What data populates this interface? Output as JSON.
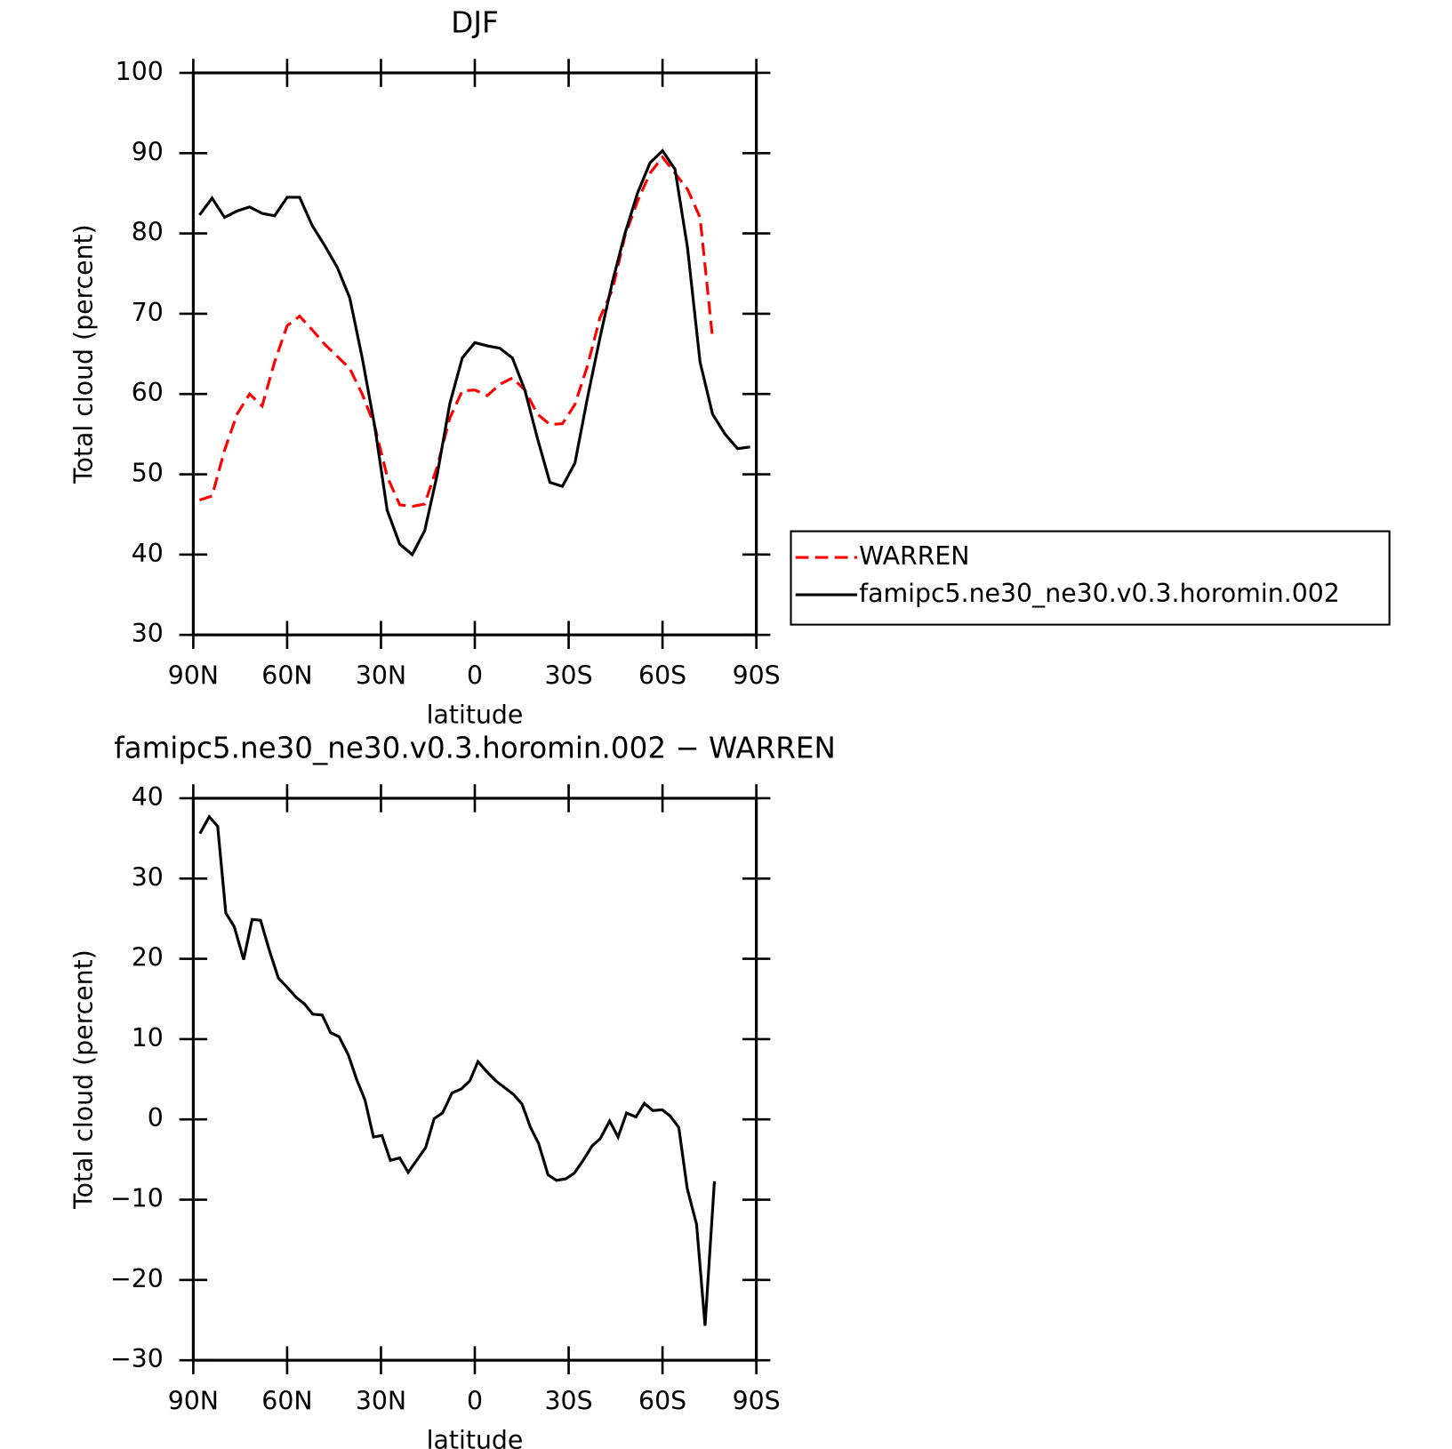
{
  "chart_data": [
    {
      "type": "line",
      "title": "DJF",
      "xlabel": "latitude",
      "ylabel": "Total cloud (percent)",
      "x": [
        88,
        84,
        80,
        76,
        72,
        68,
        64,
        60,
        56,
        52,
        48,
        44,
        40,
        36,
        32,
        28,
        24,
        20,
        16,
        12,
        8,
        4,
        0,
        -4,
        -8,
        -12,
        -16,
        -20,
        -24,
        -28,
        -32,
        -36,
        -40,
        -44,
        -48,
        -52,
        -56,
        -60,
        -64,
        -68,
        -72,
        -76,
        -80,
        -84,
        -88
      ],
      "xlim": [
        90,
        -90
      ],
      "xticks": [
        {
          "value": 90,
          "label": "90N"
        },
        {
          "value": 60,
          "label": "60N"
        },
        {
          "value": 30,
          "label": "30N"
        },
        0,
        {
          "value": -30,
          "label": "30S"
        },
        {
          "value": -60,
          "label": "60S"
        },
        {
          "value": -90,
          "label": "90S"
        }
      ],
      "ylim": [
        30,
        100
      ],
      "yticks": [
        30,
        40,
        50,
        60,
        70,
        80,
        90,
        100
      ],
      "legend": "right",
      "series": [
        {
          "name": "WARREN",
          "color": "#ff0000",
          "linestyle": "dashed",
          "values": [
            46.8,
            47.3,
            53,
            57.5,
            60,
            58.5,
            64,
            68.5,
            69.7,
            68,
            66.2,
            64.7,
            63.2,
            60,
            56,
            49.7,
            46.2,
            46,
            46.3,
            51,
            57,
            60.4,
            60.5,
            59.8,
            61.2,
            62,
            60.5,
            57.5,
            56.2,
            56.3,
            58.7,
            63.5,
            69.5,
            73,
            79.7,
            84,
            87.5,
            89.5,
            87.5,
            85.5,
            82,
            67,
            null,
            null,
            null
          ]
        },
        {
          "name": "famipc5.ne30_ne30.v0.3.horomin.002",
          "color": "#000000",
          "linestyle": "solid",
          "values": [
            82.3,
            84.4,
            82,
            82.8,
            83.3,
            82.5,
            82.2,
            84.5,
            84.5,
            81,
            78.5,
            75.8,
            72,
            64.5,
            56,
            45.5,
            41.3,
            40,
            43,
            50,
            58.8,
            64.5,
            66.4,
            66,
            65.7,
            64.5,
            60.5,
            54.5,
            49,
            48.5,
            51.4,
            59.5,
            67,
            74,
            80,
            85,
            88.8,
            90.3,
            88,
            78.2,
            64,
            57.5,
            55,
            53.2,
            53.4
          ]
        }
      ]
    },
    {
      "type": "line",
      "title": "famipc5.ne30_ne30.v0.3.horomin.002 − WARREN",
      "xlabel": "latitude",
      "ylabel": "Total cloud (percent)",
      "x": [
        87.9,
        84.9,
        82.2,
        79.6,
        76.9,
        73.9,
        71.2,
        68.5,
        65.8,
        62.8,
        60.1,
        57.1,
        54.5,
        51.8,
        48.8,
        46.1,
        43.4,
        40.4,
        37.8,
        35.1,
        32.4,
        29.7,
        27,
        24,
        21.3,
        18.4,
        15.7,
        13,
        10.3,
        7.3,
        4.3,
        1.6,
        -1,
        -3.7,
        -6.7,
        -9.4,
        -12.4,
        -15.1,
        -17.8,
        -20.4,
        -23.4,
        -26.1,
        -29.1,
        -31.8,
        -34.8,
        -37.5,
        -40.1,
        -43.1,
        -45.8,
        -48.5,
        -51.5,
        -54.2,
        -56.9,
        -59.9,
        -62.5,
        -65.2,
        -67.9,
        -70.9,
        -73.6,
        -76.6
      ],
      "xlim": [
        90,
        -90
      ],
      "xticks": [
        {
          "value": 90,
          "label": "90N"
        },
        {
          "value": 60,
          "label": "60N"
        },
        {
          "value": 30,
          "label": "30N"
        },
        0,
        {
          "value": -30,
          "label": "30S"
        },
        {
          "value": -60,
          "label": "60S"
        },
        {
          "value": -90,
          "label": "90S"
        }
      ],
      "ylim": [
        -30,
        40
      ],
      "yticks": [
        {
          "value": -30,
          "label": "−30"
        },
        {
          "value": -20,
          "label": "−20"
        },
        {
          "value": -10,
          "label": "−10"
        },
        0,
        10,
        20,
        30,
        40
      ],
      "series": [
        {
          "color": "#000000",
          "linestyle": "solid",
          "values": [
            35.6,
            37.7,
            36.5,
            25.7,
            24,
            19.9,
            24.9,
            24.8,
            21.2,
            17.6,
            16.5,
            15.2,
            14.4,
            13.1,
            13,
            10.8,
            10.3,
            8,
            5,
            2.4,
            -2.2,
            -2,
            -5.1,
            -4.8,
            -6.6,
            -5,
            -3.5,
            0.1,
            0.8,
            3.3,
            3.8,
            4.8,
            7.2,
            6.0,
            4.8,
            4,
            3.1,
            1.9,
            -1,
            -3,
            -6.9,
            -7.6,
            -7.4,
            -6.7,
            -5,
            -3.3,
            -2.4,
            -0.2,
            -2.2,
            0.8,
            0.3,
            2,
            1.1,
            1.2,
            0.4,
            -1,
            -8.6,
            -13.1,
            -25.7,
            -7.7
          ]
        }
      ]
    }
  ]
}
